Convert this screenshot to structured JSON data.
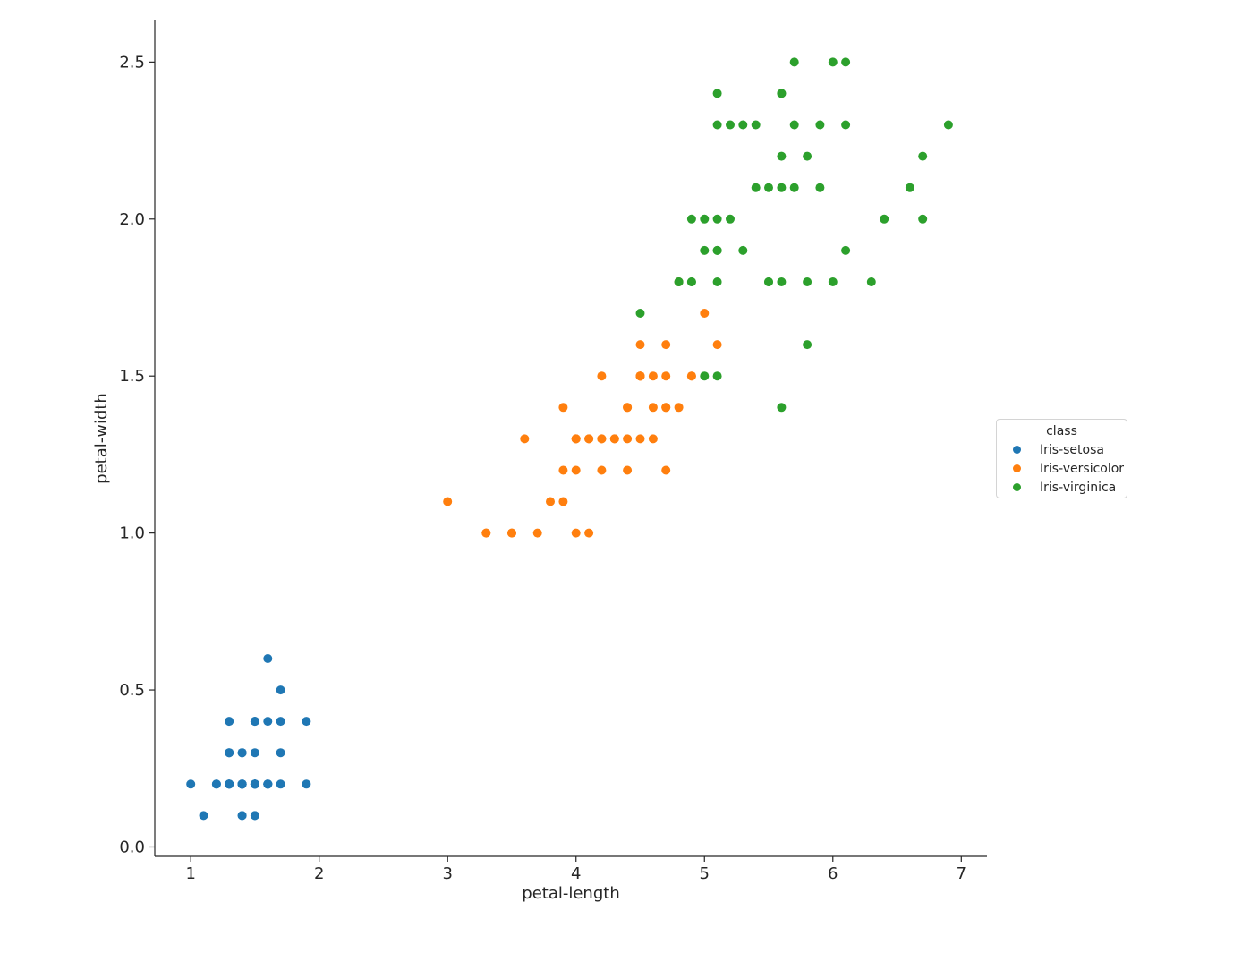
{
  "chart_data": {
    "type": "scatter",
    "xlabel": "petal-length",
    "ylabel": "petal-width",
    "xlim": [
      0.72,
      7.2
    ],
    "ylim": [
      -0.03,
      2.635
    ],
    "xticks": [
      1,
      2,
      3,
      4,
      5,
      6,
      7
    ],
    "xtick_labels": [
      "1",
      "2",
      "3",
      "4",
      "5",
      "6",
      "7"
    ],
    "yticks": [
      0.0,
      0.5,
      1.0,
      1.5,
      2.0,
      2.5
    ],
    "ytick_labels": [
      "0.0",
      "0.5",
      "1.0",
      "1.5",
      "2.0",
      "2.5"
    ],
    "grid": false,
    "legend": {
      "title": "class",
      "position": "center right"
    },
    "series": [
      {
        "name": "Iris-setosa",
        "color": "#1f77b4",
        "points": [
          [
            1.4,
            0.2
          ],
          [
            1.4,
            0.2
          ],
          [
            1.3,
            0.2
          ],
          [
            1.5,
            0.2
          ],
          [
            1.4,
            0.2
          ],
          [
            1.7,
            0.4
          ],
          [
            1.4,
            0.3
          ],
          [
            1.5,
            0.2
          ],
          [
            1.4,
            0.2
          ],
          [
            1.5,
            0.1
          ],
          [
            1.5,
            0.2
          ],
          [
            1.6,
            0.2
          ],
          [
            1.4,
            0.1
          ],
          [
            1.1,
            0.1
          ],
          [
            1.2,
            0.2
          ],
          [
            1.5,
            0.4
          ],
          [
            1.3,
            0.4
          ],
          [
            1.4,
            0.3
          ],
          [
            1.7,
            0.3
          ],
          [
            1.5,
            0.3
          ],
          [
            1.7,
            0.2
          ],
          [
            1.5,
            0.4
          ],
          [
            1.0,
            0.2
          ],
          [
            1.7,
            0.5
          ],
          [
            1.9,
            0.2
          ],
          [
            1.6,
            0.2
          ],
          [
            1.6,
            0.4
          ],
          [
            1.5,
            0.2
          ],
          [
            1.4,
            0.2
          ],
          [
            1.6,
            0.2
          ],
          [
            1.6,
            0.2
          ],
          [
            1.5,
            0.4
          ],
          [
            1.5,
            0.1
          ],
          [
            1.4,
            0.2
          ],
          [
            1.5,
            0.2
          ],
          [
            1.2,
            0.2
          ],
          [
            1.3,
            0.2
          ],
          [
            1.4,
            0.1
          ],
          [
            1.3,
            0.2
          ],
          [
            1.5,
            0.2
          ],
          [
            1.3,
            0.3
          ],
          [
            1.3,
            0.3
          ],
          [
            1.3,
            0.2
          ],
          [
            1.6,
            0.6
          ],
          [
            1.9,
            0.4
          ],
          [
            1.4,
            0.3
          ],
          [
            1.6,
            0.2
          ],
          [
            1.4,
            0.2
          ],
          [
            1.5,
            0.2
          ],
          [
            1.4,
            0.2
          ]
        ]
      },
      {
        "name": "Iris-versicolor",
        "color": "#ff7f0e",
        "points": [
          [
            4.7,
            1.4
          ],
          [
            4.5,
            1.5
          ],
          [
            4.9,
            1.5
          ],
          [
            4.0,
            1.3
          ],
          [
            4.6,
            1.5
          ],
          [
            4.5,
            1.3
          ],
          [
            4.7,
            1.6
          ],
          [
            3.3,
            1.0
          ],
          [
            4.6,
            1.3
          ],
          [
            3.9,
            1.4
          ],
          [
            3.5,
            1.0
          ],
          [
            4.2,
            1.5
          ],
          [
            4.0,
            1.0
          ],
          [
            4.7,
            1.4
          ],
          [
            3.6,
            1.3
          ],
          [
            4.4,
            1.4
          ],
          [
            4.5,
            1.5
          ],
          [
            4.1,
            1.0
          ],
          [
            4.5,
            1.5
          ],
          [
            3.9,
            1.1
          ],
          [
            4.8,
            1.8
          ],
          [
            4.0,
            1.3
          ],
          [
            4.9,
            1.5
          ],
          [
            4.7,
            1.2
          ],
          [
            4.3,
            1.3
          ],
          [
            4.4,
            1.4
          ],
          [
            4.8,
            1.4
          ],
          [
            5.0,
            1.7
          ],
          [
            4.5,
            1.5
          ],
          [
            3.5,
            1.0
          ],
          [
            3.8,
            1.1
          ],
          [
            3.7,
            1.0
          ],
          [
            3.9,
            1.2
          ],
          [
            5.1,
            1.6
          ],
          [
            4.5,
            1.5
          ],
          [
            4.5,
            1.6
          ],
          [
            4.7,
            1.5
          ],
          [
            4.4,
            1.3
          ],
          [
            4.1,
            1.3
          ],
          [
            4.0,
            1.3
          ],
          [
            4.4,
            1.2
          ],
          [
            4.6,
            1.4
          ],
          [
            4.0,
            1.2
          ],
          [
            3.3,
            1.0
          ],
          [
            4.2,
            1.3
          ],
          [
            4.2,
            1.2
          ],
          [
            4.2,
            1.3
          ],
          [
            4.3,
            1.3
          ],
          [
            3.0,
            1.1
          ],
          [
            4.1,
            1.3
          ]
        ]
      },
      {
        "name": "Iris-virginica",
        "color": "#2ca02c",
        "points": [
          [
            6.0,
            2.5
          ],
          [
            5.1,
            1.9
          ],
          [
            5.9,
            2.1
          ],
          [
            5.6,
            1.8
          ],
          [
            5.8,
            2.2
          ],
          [
            6.6,
            2.1
          ],
          [
            4.5,
            1.7
          ],
          [
            6.3,
            1.8
          ],
          [
            5.8,
            1.8
          ],
          [
            6.1,
            2.5
          ],
          [
            5.1,
            2.0
          ],
          [
            5.3,
            1.9
          ],
          [
            5.5,
            2.1
          ],
          [
            5.0,
            2.0
          ],
          [
            5.1,
            2.4
          ],
          [
            5.3,
            2.3
          ],
          [
            5.5,
            1.8
          ],
          [
            6.7,
            2.2
          ],
          [
            6.9,
            2.3
          ],
          [
            5.0,
            1.5
          ],
          [
            5.7,
            2.3
          ],
          [
            4.9,
            2.0
          ],
          [
            6.7,
            2.0
          ],
          [
            4.9,
            1.8
          ],
          [
            5.7,
            2.1
          ],
          [
            6.0,
            1.8
          ],
          [
            4.8,
            1.8
          ],
          [
            4.9,
            1.8
          ],
          [
            5.6,
            2.1
          ],
          [
            5.8,
            1.6
          ],
          [
            6.1,
            1.9
          ],
          [
            6.4,
            2.0
          ],
          [
            5.6,
            2.2
          ],
          [
            5.1,
            1.5
          ],
          [
            5.6,
            1.4
          ],
          [
            6.1,
            2.3
          ],
          [
            5.6,
            2.4
          ],
          [
            5.5,
            1.8
          ],
          [
            4.8,
            1.8
          ],
          [
            5.4,
            2.1
          ],
          [
            5.6,
            2.4
          ],
          [
            5.1,
            2.3
          ],
          [
            5.1,
            1.9
          ],
          [
            5.9,
            2.3
          ],
          [
            5.7,
            2.5
          ],
          [
            5.2,
            2.3
          ],
          [
            5.0,
            1.9
          ],
          [
            5.2,
            2.0
          ],
          [
            5.4,
            2.3
          ],
          [
            5.1,
            1.8
          ]
        ]
      }
    ]
  }
}
